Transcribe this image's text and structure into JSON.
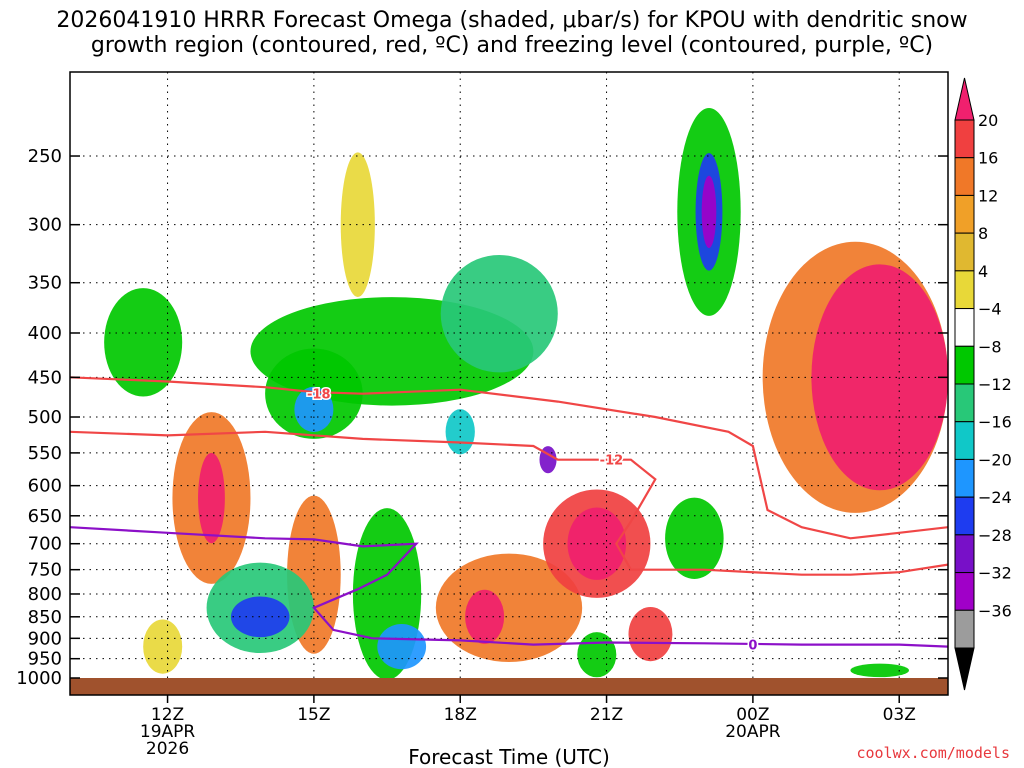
{
  "header": {
    "line1": "2026041910 HRRR Forecast Omega (shaded, μbar/s) for KPOU with dendritic snow",
    "line2": "growth region (contoured, red, ºC) and freezing level (contoured, purple, ºC)"
  },
  "footer": {
    "credit": "coolwx.com/models"
  },
  "chart_data": {
    "type": "heatmap",
    "title": "2026041910 HRRR Forecast Omega (shaded, μbar/s) for KPOU with dendritic snow growth region (contoured, red, ºC) and freezing level (contoured, purple, ºC)",
    "xlabel": "Forecast Time (UTC)",
    "ylabel": "",
    "x_unit": "hours since 2026-04-19 10Z",
    "xlim": [
      0,
      18
    ],
    "ylim": [
      1000,
      200
    ],
    "y_scale": "log",
    "grid": true,
    "x_ticks": [
      {
        "x": 2,
        "label": "12Z",
        "sub1": "19APR",
        "sub2": "2026"
      },
      {
        "x": 5,
        "label": "15Z",
        "sub1": "",
        "sub2": ""
      },
      {
        "x": 8,
        "label": "18Z",
        "sub1": "",
        "sub2": ""
      },
      {
        "x": 11,
        "label": "21Z",
        "sub1": "",
        "sub2": ""
      },
      {
        "x": 14,
        "label": "00Z",
        "sub1": "20APR",
        "sub2": ""
      },
      {
        "x": 17,
        "label": "03Z",
        "sub1": "",
        "sub2": ""
      }
    ],
    "y_ticks": [
      {
        "p": 250,
        "label": "250"
      },
      {
        "p": 300,
        "label": "300"
      },
      {
        "p": 350,
        "label": "350"
      },
      {
        "p": 400,
        "label": "400"
      },
      {
        "p": 450,
        "label": "450"
      },
      {
        "p": 500,
        "label": "500"
      },
      {
        "p": 550,
        "label": "550"
      },
      {
        "p": 600,
        "label": "600"
      },
      {
        "p": 650,
        "label": "650"
      },
      {
        "p": 700,
        "label": "700"
      },
      {
        "p": 750,
        "label": "750"
      },
      {
        "p": 800,
        "label": "800"
      },
      {
        "p": 850,
        "label": "850"
      },
      {
        "p": 900,
        "label": "900"
      },
      {
        "p": 950,
        "label": "950"
      },
      {
        "p": 1000,
        "label": "1000"
      }
    ],
    "colorbar": {
      "label_values": [
        "20",
        "16",
        "12",
        "8",
        "4",
        "−4",
        "−8",
        "−12",
        "−16",
        "−20",
        "−24",
        "−28",
        "−32",
        "−36"
      ],
      "colors": [
        "#f0206e",
        "#f04040",
        "#f07828",
        "#f0a028",
        "#e0b830",
        "#e8d838",
        "#ffffff",
        "#00c800",
        "#28c878",
        "#10c8c8",
        "#1e96ff",
        "#1e3cf0",
        "#7810c8",
        "#a000c8",
        "#9c9c9c",
        "#000000"
      ]
    },
    "omega_regions": [
      {
        "value": "4",
        "color": "#e8d838",
        "x": 5.9,
        "p": 300,
        "w": 0.7,
        "h": 3.2
      },
      {
        "value": "-8",
        "color": "#00c800",
        "x": 6.6,
        "p": 420,
        "w": 5.8,
        "h": 2.4
      },
      {
        "value": "-12",
        "color": "#28c878",
        "x": 8.8,
        "p": 380,
        "w": 2.4,
        "h": 2.6
      },
      {
        "value": "-16",
        "color": "#10c8c8",
        "x": 8.0,
        "p": 520,
        "w": 0.6,
        "h": 1.0
      },
      {
        "value": "-24",
        "color": "#7810c8",
        "x": 9.8,
        "p": 560,
        "w": 0.35,
        "h": 0.6
      },
      {
        "value": "-8",
        "color": "#00c800",
        "x": 13.1,
        "p": 290,
        "w": 1.3,
        "h": 4.6
      },
      {
        "value": "-20",
        "color": "#1e3cf0",
        "x": 13.1,
        "p": 290,
        "w": 0.55,
        "h": 2.6
      },
      {
        "value": "-28",
        "color": "#a000c8",
        "x": 13.1,
        "p": 290,
        "w": 0.3,
        "h": 1.6
      },
      {
        "value": "-8",
        "color": "#00c800",
        "x": 1.5,
        "p": 410,
        "w": 1.6,
        "h": 2.4
      },
      {
        "value": "-8",
        "color": "#00c800",
        "x": 5.0,
        "p": 470,
        "w": 2.0,
        "h": 2.0
      },
      {
        "value": "-16",
        "color": "#1e96ff",
        "x": 5.0,
        "p": 490,
        "w": 0.8,
        "h": 1.0
      },
      {
        "value": "12",
        "color": "#f07828",
        "x": 2.9,
        "p": 620,
        "w": 1.6,
        "h": 3.8
      },
      {
        "value": "20",
        "color": "#f0206e",
        "x": 2.9,
        "p": 620,
        "w": 0.55,
        "h": 2.0
      },
      {
        "value": "12",
        "color": "#f07828",
        "x": 5.0,
        "p": 760,
        "w": 1.1,
        "h": 3.5
      },
      {
        "value": "-12",
        "color": "#28c878",
        "x": 3.9,
        "p": 830,
        "w": 2.2,
        "h": 2.0
      },
      {
        "value": "-20",
        "color": "#1e3cf0",
        "x": 3.9,
        "p": 850,
        "w": 1.2,
        "h": 0.9
      },
      {
        "value": "-8",
        "color": "#00c800",
        "x": 6.5,
        "p": 800,
        "w": 1.4,
        "h": 3.8
      },
      {
        "value": "-16",
        "color": "#1e96ff",
        "x": 6.8,
        "p": 920,
        "w": 1.0,
        "h": 1.0
      },
      {
        "value": "12",
        "color": "#f07828",
        "x": 9.0,
        "p": 830,
        "w": 3.0,
        "h": 2.4
      },
      {
        "value": "20",
        "color": "#f0206e",
        "x": 8.5,
        "p": 850,
        "w": 0.8,
        "h": 1.2
      },
      {
        "value": "16",
        "color": "#f04040",
        "x": 10.8,
        "p": 700,
        "w": 2.2,
        "h": 2.4
      },
      {
        "value": "20",
        "color": "#f0206e",
        "x": 10.8,
        "p": 700,
        "w": 1.2,
        "h": 1.6
      },
      {
        "value": "16",
        "color": "#f04040",
        "x": 11.9,
        "p": 890,
        "w": 0.9,
        "h": 1.2
      },
      {
        "value": "-8",
        "color": "#00c800",
        "x": 12.8,
        "p": 690,
        "w": 1.2,
        "h": 1.8
      },
      {
        "value": "-8",
        "color": "#00c800",
        "x": 10.8,
        "p": 940,
        "w": 0.8,
        "h": 1.0
      },
      {
        "value": "12",
        "color": "#f07828",
        "x": 16.1,
        "p": 450,
        "w": 3.8,
        "h": 6.0
      },
      {
        "value": "20",
        "color": "#f0206e",
        "x": 16.6,
        "p": 450,
        "w": 2.8,
        "h": 5.0
      },
      {
        "value": "4",
        "color": "#e8d838",
        "x": 1.9,
        "p": 920,
        "w": 0.8,
        "h": 1.2
      },
      {
        "value": "-8",
        "color": "#00c800",
        "x": 16.6,
        "p": 980,
        "w": 1.2,
        "h": 0.3
      }
    ],
    "contours": [
      {
        "label": "-18",
        "color": "#f04646",
        "label_x": 5.1,
        "label_p": 470,
        "points": [
          [
            0,
            450
          ],
          [
            2,
            455
          ],
          [
            4,
            462
          ],
          [
            5,
            468
          ],
          [
            6,
            470
          ],
          [
            8,
            465
          ],
          [
            10,
            480
          ],
          [
            12,
            500
          ],
          [
            13.5,
            520
          ],
          [
            14,
            540
          ],
          [
            14.3,
            640
          ],
          [
            15,
            670
          ],
          [
            16,
            690
          ],
          [
            17,
            680
          ],
          [
            18,
            670
          ]
        ]
      },
      {
        "label": "-12",
        "color": "#f04646",
        "label_x": 11.1,
        "label_p": 560,
        "points": [
          [
            0,
            520
          ],
          [
            2,
            525
          ],
          [
            4,
            520
          ],
          [
            6,
            530
          ],
          [
            8,
            535
          ],
          [
            9.5,
            540
          ],
          [
            10,
            560
          ],
          [
            11.5,
            560
          ],
          [
            12,
            590
          ],
          [
            11.5,
            660
          ],
          [
            11.2,
            700
          ],
          [
            11.5,
            750
          ],
          [
            13,
            750
          ],
          [
            15,
            760
          ],
          [
            16,
            760
          ],
          [
            17,
            755
          ],
          [
            18,
            740
          ]
        ]
      },
      {
        "label": "0",
        "color": "#8c10c8",
        "label_x": 14.0,
        "label_p": 915,
        "points": [
          [
            0,
            670
          ],
          [
            2,
            680
          ],
          [
            4,
            690
          ],
          [
            5,
            692
          ],
          [
            6,
            705
          ],
          [
            7.1,
            700
          ],
          [
            6.5,
            760
          ],
          [
            5.9,
            790
          ],
          [
            5.0,
            830
          ],
          [
            5.4,
            880
          ],
          [
            6.2,
            900
          ],
          [
            8,
            905
          ],
          [
            9.5,
            915
          ],
          [
            11,
            910
          ],
          [
            13,
            912
          ],
          [
            15,
            915
          ],
          [
            17,
            915
          ],
          [
            18,
            920
          ]
        ]
      }
    ]
  }
}
